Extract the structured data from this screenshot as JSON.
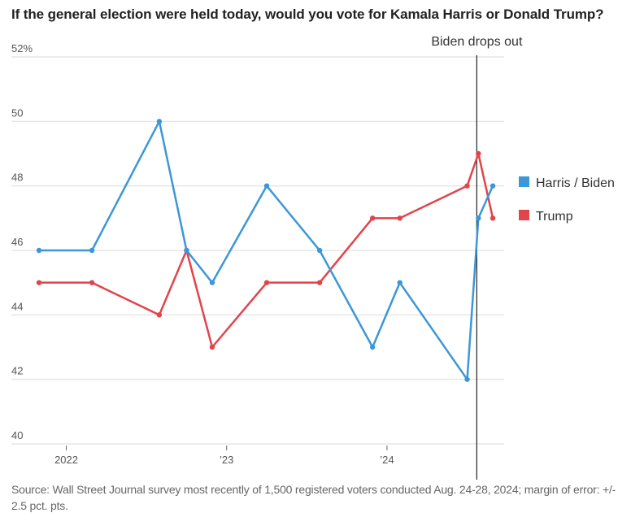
{
  "chart_data": {
    "type": "line",
    "title": "If the general election were held today, would you vote for Kamala Harris or Donald Trump?",
    "xlabel": "",
    "ylabel": "",
    "ylim": [
      40,
      52
    ],
    "yticks": [
      40,
      42,
      44,
      46,
      48,
      50,
      52
    ],
    "ytick_labels": [
      "40",
      "42",
      "44",
      "46",
      "48",
      "50",
      "52%"
    ],
    "xlim": [
      2021.83,
      2024.69
    ],
    "xticks": [
      2022.0,
      2023.0,
      2024.0
    ],
    "xtick_labels": [
      "2022",
      "’23",
      "’24"
    ],
    "x": [
      2021.83,
      2022.16,
      2022.58,
      2022.75,
      2022.91,
      2023.25,
      2023.58,
      2023.91,
      2024.08,
      2024.5,
      2024.57,
      2024.66
    ],
    "series": [
      {
        "name": "Harris / Biden",
        "color": "#3b97d8",
        "values": [
          46,
          46,
          50,
          46,
          45,
          48,
          46,
          43,
          45,
          42,
          47,
          48
        ]
      },
      {
        "name": "Trump",
        "color": "#e2444a",
        "values": [
          45,
          45,
          44,
          46,
          43,
          45,
          45,
          47,
          47,
          48,
          49,
          47
        ]
      }
    ],
    "annotations": [
      {
        "label": "Biden drops out",
        "x": 2024.56
      }
    ],
    "grid": true,
    "legend_position": "right"
  },
  "source": "Source: Wall Street Journal survey most recently of 1,500 registered voters conducted Aug. 24-28, 2024; margin of error: +/- 2.5 pct. pts."
}
